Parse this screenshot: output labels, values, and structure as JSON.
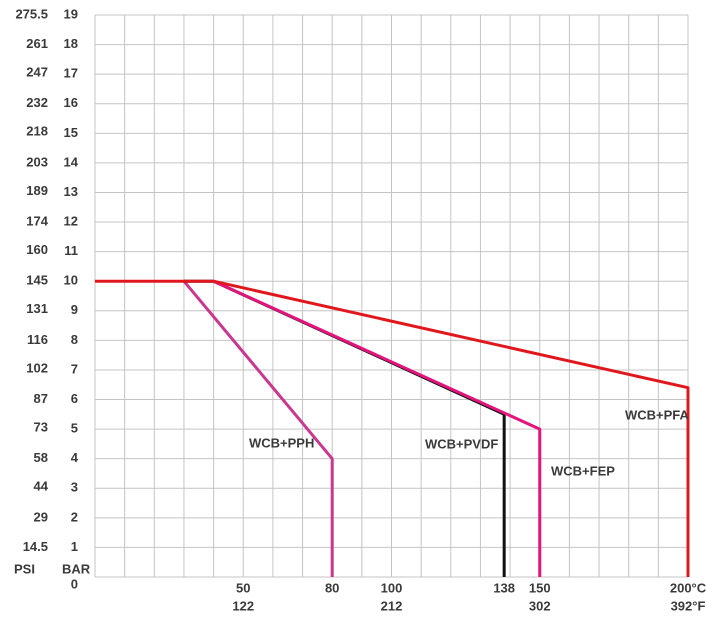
{
  "chart_data": {
    "type": "line",
    "y_label": "BAR",
    "y2_label": "PSI",
    "xlim": [
      0,
      200
    ],
    "xticks": [
      50,
      80,
      100,
      138,
      150,
      {
        "value": 200,
        "label": "200°C"
      }
    ],
    "xgrid": [
      0,
      10,
      20,
      30,
      40,
      50,
      60,
      70,
      80,
      90,
      100,
      110,
      120,
      130,
      140,
      150,
      160,
      170,
      180,
      190,
      200
    ],
    "x2lim": [
      32,
      392
    ],
    "x2ticks": [
      122,
      212,
      302,
      {
        "value": 392,
        "label": "392°F"
      }
    ],
    "ylim": [
      0,
      19
    ],
    "yticks": [
      0,
      1,
      2,
      3,
      4,
      5,
      6,
      7,
      8,
      9,
      10,
      11,
      12,
      13,
      14,
      15,
      16,
      17,
      18,
      19
    ],
    "y2lim": [
      0,
      275.5
    ],
    "y2ticks": [
      14.5,
      29,
      44,
      58,
      73,
      87,
      102,
      116,
      131,
      145,
      160,
      174,
      189,
      203,
      218,
      232,
      247,
      261,
      275.5
    ],
    "grid": true,
    "series": [
      {
        "name": "WCB+PPH",
        "color": "#c9378f",
        "x": [
          30,
          80,
          80
        ],
        "values": [
          10,
          4,
          0
        ]
      },
      {
        "name": "WCB+PVDF",
        "color": "#111111",
        "x": [
          30,
          40,
          138,
          138
        ],
        "values": [
          10,
          10,
          5.5,
          0
        ]
      },
      {
        "name": "WCB+FEP",
        "color": "#e3157c",
        "x": [
          40,
          150,
          150
        ],
        "values": [
          10,
          5,
          0
        ]
      },
      {
        "name": "WCB+PFA",
        "color": "#e0181e",
        "x": [
          0,
          40,
          200,
          200
        ],
        "values": [
          10,
          10,
          6.4,
          0
        ]
      }
    ]
  }
}
